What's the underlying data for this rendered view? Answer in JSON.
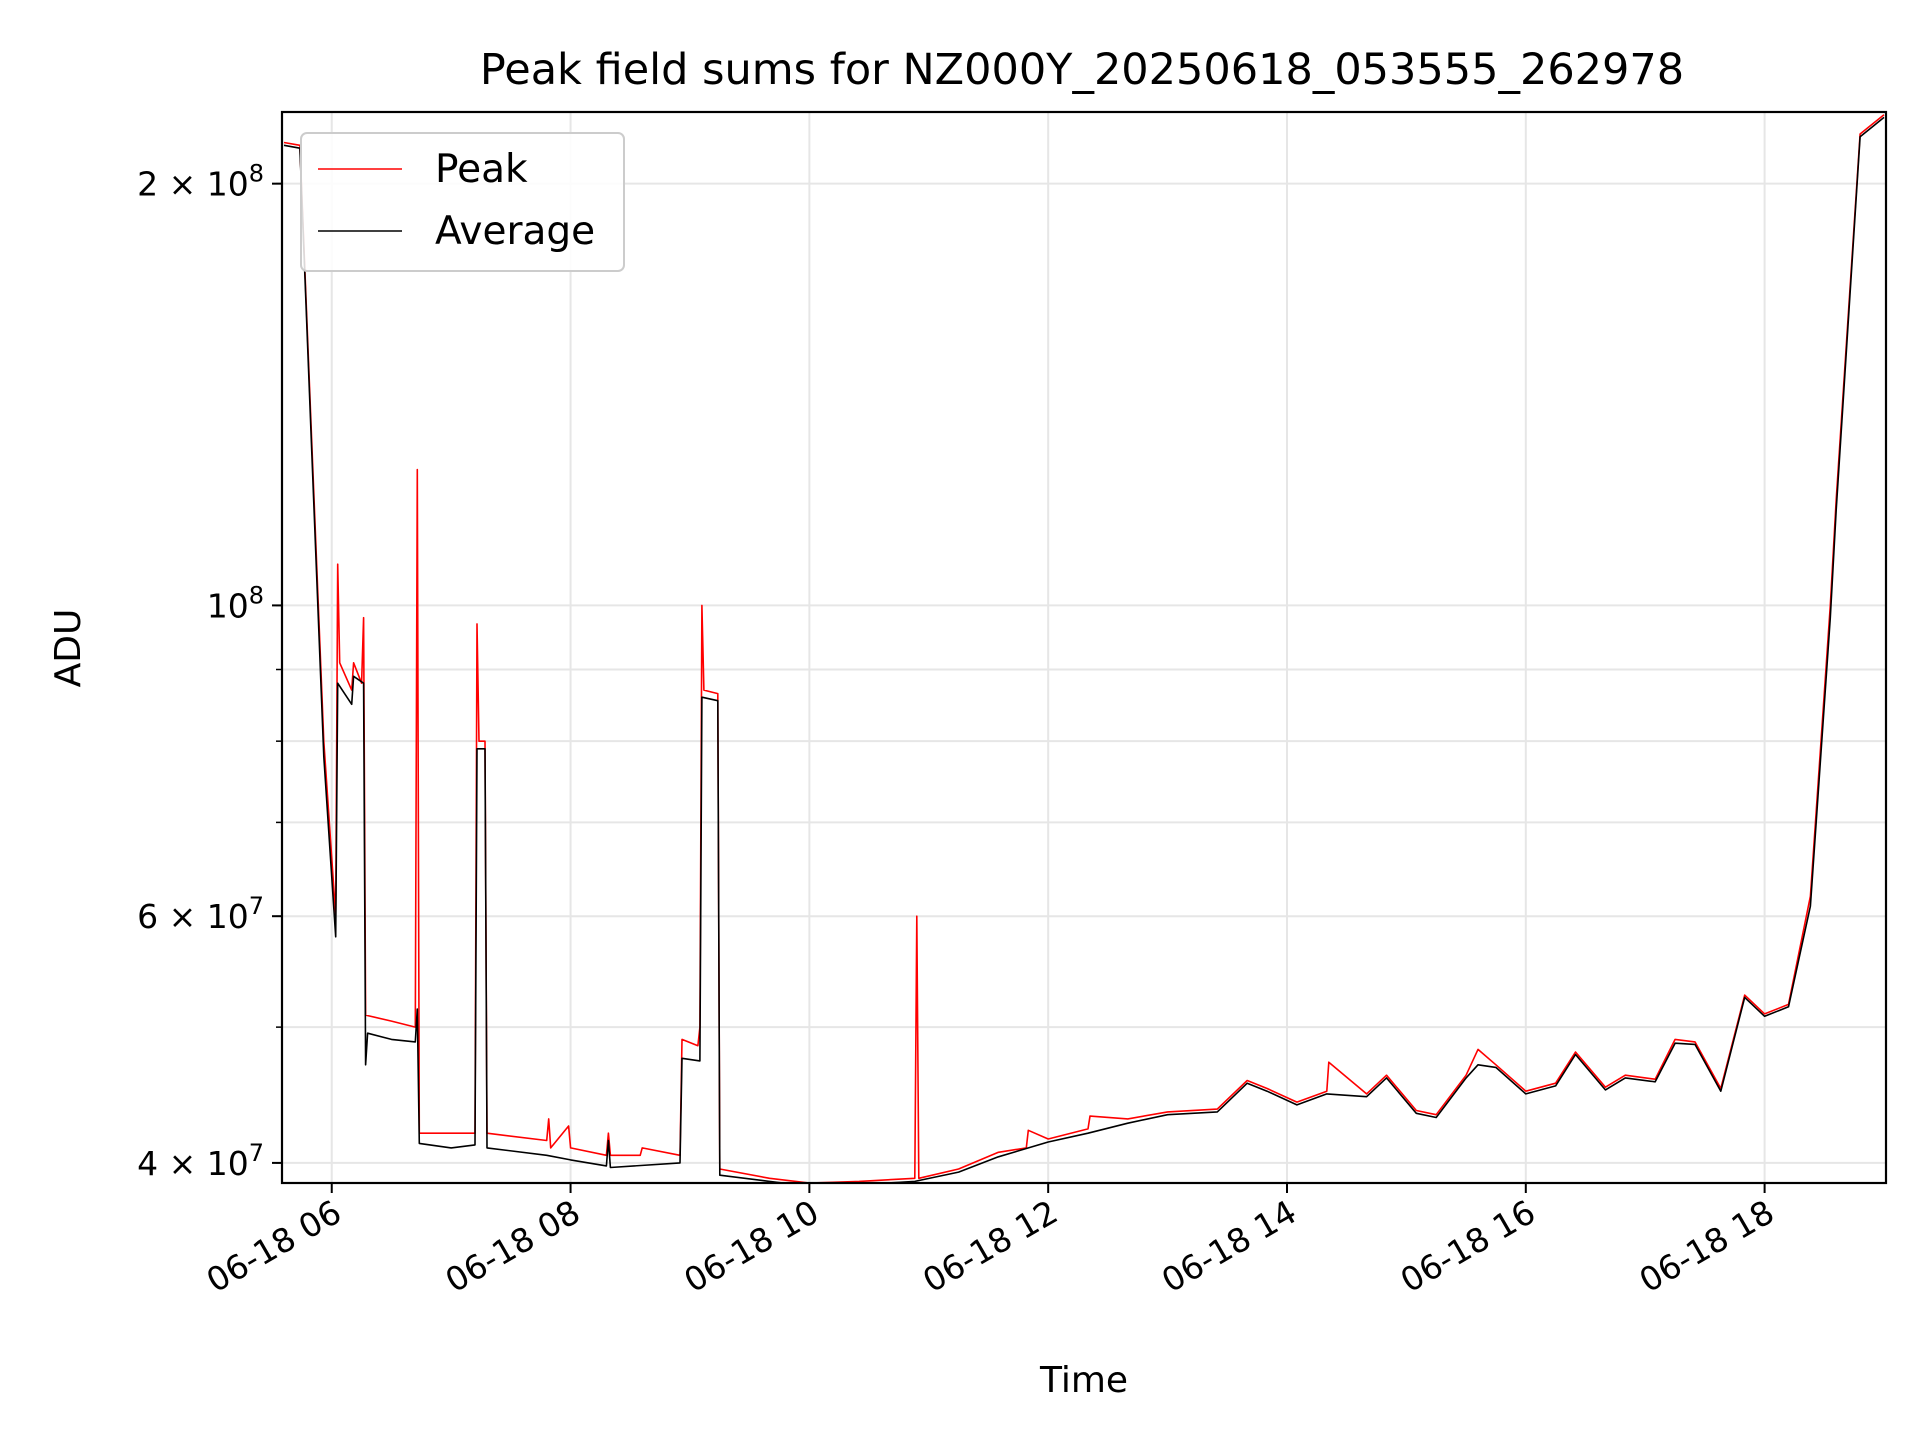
{
  "chart_data": {
    "type": "line",
    "title": "Peak field sums for NZ000Y_20250618_053555_262978",
    "xlabel": "Time",
    "ylabel": "ADU",
    "y_scale": "log",
    "grid": true,
    "legend_position": "upper-left",
    "xlim": [
      "2025-06-18 05:35",
      "2025-06-18 19:01"
    ],
    "ylim": [
      38700000,
      225000000
    ],
    "x_ticks": [
      "06-18 06",
      "06-18 08",
      "06-18 10",
      "06-18 12",
      "06-18 14",
      "06-18 16",
      "06-18 18"
    ],
    "y_ticks": [
      {
        "value": 40000000,
        "base": "4",
        "exp": "7"
      },
      {
        "value": 60000000,
        "base": "6",
        "exp": "7"
      },
      {
        "value": 100000000,
        "base": "",
        "exp": "8"
      },
      {
        "value": 200000000,
        "base": "2",
        "exp": "8"
      }
    ],
    "series": [
      {
        "name": "Peak",
        "color": "#ff0000",
        "points": [
          [
            "2025-06-18 05:36",
            214000000
          ],
          [
            "2025-06-18 05:44",
            213000000
          ],
          [
            "2025-06-18 05:50",
            130000000
          ],
          [
            "2025-06-18 05:56",
            80000000
          ],
          [
            "2025-06-18 06:02",
            60000000
          ],
          [
            "2025-06-18 06:03",
            107000000
          ],
          [
            "2025-06-18 06:04",
            91000000
          ],
          [
            "2025-06-18 06:10",
            87000000
          ],
          [
            "2025-06-18 06:11",
            91000000
          ],
          [
            "2025-06-18 06:15",
            88000000
          ],
          [
            "2025-06-18 06:16",
            98000000
          ],
          [
            "2025-06-18 06:17",
            51000000
          ],
          [
            "2025-06-18 06:30",
            50500000
          ],
          [
            "2025-06-18 06:42",
            50000000
          ],
          [
            "2025-06-18 06:43",
            125000000
          ],
          [
            "2025-06-18 06:44",
            42000000
          ],
          [
            "2025-06-18 07:12",
            42000000
          ],
          [
            "2025-06-18 07:13",
            97000000
          ],
          [
            "2025-06-18 07:14",
            80000000
          ],
          [
            "2025-06-18 07:17",
            80000000
          ],
          [
            "2025-06-18 07:18",
            42000000
          ],
          [
            "2025-06-18 07:48",
            41500000
          ],
          [
            "2025-06-18 07:49",
            43000000
          ],
          [
            "2025-06-18 07:50",
            41000000
          ],
          [
            "2025-06-18 07:59",
            42500000
          ],
          [
            "2025-06-18 08:00",
            41000000
          ],
          [
            "2025-06-18 08:18",
            40500000
          ],
          [
            "2025-06-18 08:19",
            42000000
          ],
          [
            "2025-06-18 08:20",
            40500000
          ],
          [
            "2025-06-18 08:35",
            40500000
          ],
          [
            "2025-06-18 08:36",
            41000000
          ],
          [
            "2025-06-18 08:55",
            40500000
          ],
          [
            "2025-06-18 08:56",
            49000000
          ],
          [
            "2025-06-18 09:04",
            48500000
          ],
          [
            "2025-06-18 09:05",
            50000000
          ],
          [
            "2025-06-18 09:06",
            100000000
          ],
          [
            "2025-06-18 09:07",
            87000000
          ],
          [
            "2025-06-18 09:14",
            86500000
          ],
          [
            "2025-06-18 09:15",
            39600000
          ],
          [
            "2025-06-18 09:40",
            39000000
          ],
          [
            "2025-06-18 10:00",
            38700000
          ],
          [
            "2025-06-18 10:25",
            38800000
          ],
          [
            "2025-06-18 10:53",
            39000000
          ],
          [
            "2025-06-18 10:54",
            60000000
          ],
          [
            "2025-06-18 10:55",
            39000000
          ],
          [
            "2025-06-18 11:15",
            39600000
          ],
          [
            "2025-06-18 11:35",
            40700000
          ],
          [
            "2025-06-18 11:49",
            41000000
          ],
          [
            "2025-06-18 11:50",
            42200000
          ],
          [
            "2025-06-18 12:00",
            41600000
          ],
          [
            "2025-06-18 12:20",
            42300000
          ],
          [
            "2025-06-18 12:21",
            43200000
          ],
          [
            "2025-06-18 12:40",
            43000000
          ],
          [
            "2025-06-18 13:00",
            43500000
          ],
          [
            "2025-06-18 13:25",
            43700000
          ],
          [
            "2025-06-18 13:40",
            45800000
          ],
          [
            "2025-06-18 13:50",
            45200000
          ],
          [
            "2025-06-18 14:05",
            44200000
          ],
          [
            "2025-06-18 14:20",
            45000000
          ],
          [
            "2025-06-18 14:21",
            47200000
          ],
          [
            "2025-06-18 14:40",
            44800000
          ],
          [
            "2025-06-18 14:50",
            46200000
          ],
          [
            "2025-06-18 15:05",
            43600000
          ],
          [
            "2025-06-18 15:15",
            43300000
          ],
          [
            "2025-06-18 15:30",
            46200000
          ],
          [
            "2025-06-18 15:36",
            48200000
          ],
          [
            "2025-06-18 15:45",
            47000000
          ],
          [
            "2025-06-18 16:00",
            45000000
          ],
          [
            "2025-06-18 16:15",
            45600000
          ],
          [
            "2025-06-18 16:25",
            48000000
          ],
          [
            "2025-06-18 16:40",
            45300000
          ],
          [
            "2025-06-18 16:50",
            46200000
          ],
          [
            "2025-06-18 17:05",
            45900000
          ],
          [
            "2025-06-18 17:15",
            49000000
          ],
          [
            "2025-06-18 17:25",
            48800000
          ],
          [
            "2025-06-18 17:38",
            45200000
          ],
          [
            "2025-06-18 17:50",
            52700000
          ],
          [
            "2025-06-18 18:00",
            51100000
          ],
          [
            "2025-06-18 18:12",
            51900000
          ],
          [
            "2025-06-18 18:23",
            62000000
          ],
          [
            "2025-06-18 18:33",
            100000000
          ],
          [
            "2025-06-18 18:36",
            119000000
          ],
          [
            "2025-06-18 18:48",
            217000000
          ],
          [
            "2025-06-18 19:00",
            224000000
          ]
        ]
      },
      {
        "name": "Average",
        "color": "#000000",
        "points": [
          [
            "2025-06-18 05:36",
            213000000
          ],
          [
            "2025-06-18 05:44",
            212000000
          ],
          [
            "2025-06-18 05:50",
            128000000
          ],
          [
            "2025-06-18 05:56",
            78000000
          ],
          [
            "2025-06-18 06:02",
            58000000
          ],
          [
            "2025-06-18 06:03",
            88000000
          ],
          [
            "2025-06-18 06:10",
            85000000
          ],
          [
            "2025-06-18 06:11",
            89000000
          ],
          [
            "2025-06-18 06:16",
            88000000
          ],
          [
            "2025-06-18 06:17",
            47000000
          ],
          [
            "2025-06-18 06:18",
            49500000
          ],
          [
            "2025-06-18 06:30",
            49000000
          ],
          [
            "2025-06-18 06:42",
            48800000
          ],
          [
            "2025-06-18 06:43",
            51500000
          ],
          [
            "2025-06-18 06:44",
            41300000
          ],
          [
            "2025-06-18 07:00",
            41000000
          ],
          [
            "2025-06-18 07:12",
            41200000
          ],
          [
            "2025-06-18 07:13",
            79000000
          ],
          [
            "2025-06-18 07:17",
            79000000
          ],
          [
            "2025-06-18 07:18",
            41000000
          ],
          [
            "2025-06-18 07:48",
            40500000
          ],
          [
            "2025-06-18 08:00",
            40200000
          ],
          [
            "2025-06-18 08:18",
            39800000
          ],
          [
            "2025-06-18 08:19",
            41500000
          ],
          [
            "2025-06-18 08:20",
            39700000
          ],
          [
            "2025-06-18 08:55",
            40000000
          ],
          [
            "2025-06-18 08:56",
            47500000
          ],
          [
            "2025-06-18 09:05",
            47300000
          ],
          [
            "2025-06-18 09:06",
            86000000
          ],
          [
            "2025-06-18 09:14",
            85500000
          ],
          [
            "2025-06-18 09:15",
            39200000
          ],
          [
            "2025-06-18 09:40",
            38800000
          ],
          [
            "2025-06-18 10:00",
            38500000
          ],
          [
            "2025-06-18 10:25",
            38600000
          ],
          [
            "2025-06-18 10:53",
            38800000
          ],
          [
            "2025-06-18 11:15",
            39400000
          ],
          [
            "2025-06-18 11:35",
            40400000
          ],
          [
            "2025-06-18 12:00",
            41400000
          ],
          [
            "2025-06-18 12:20",
            42000000
          ],
          [
            "2025-06-18 12:40",
            42700000
          ],
          [
            "2025-06-18 13:00",
            43300000
          ],
          [
            "2025-06-18 13:25",
            43500000
          ],
          [
            "2025-06-18 13:40",
            45600000
          ],
          [
            "2025-06-18 13:50",
            45000000
          ],
          [
            "2025-06-18 14:05",
            44000000
          ],
          [
            "2025-06-18 14:20",
            44800000
          ],
          [
            "2025-06-18 14:40",
            44600000
          ],
          [
            "2025-06-18 14:50",
            46000000
          ],
          [
            "2025-06-18 15:05",
            43400000
          ],
          [
            "2025-06-18 15:15",
            43100000
          ],
          [
            "2025-06-18 15:30",
            46000000
          ],
          [
            "2025-06-18 15:36",
            47000000
          ],
          [
            "2025-06-18 15:45",
            46800000
          ],
          [
            "2025-06-18 16:00",
            44800000
          ],
          [
            "2025-06-18 16:15",
            45400000
          ],
          [
            "2025-06-18 16:25",
            47800000
          ],
          [
            "2025-06-18 16:40",
            45100000
          ],
          [
            "2025-06-18 16:50",
            46000000
          ],
          [
            "2025-06-18 17:05",
            45700000
          ],
          [
            "2025-06-18 17:15",
            48700000
          ],
          [
            "2025-06-18 17:25",
            48600000
          ],
          [
            "2025-06-18 17:38",
            45000000
          ],
          [
            "2025-06-18 17:50",
            52500000
          ],
          [
            "2025-06-18 18:00",
            50900000
          ],
          [
            "2025-06-18 18:12",
            51700000
          ],
          [
            "2025-06-18 18:23",
            61000000
          ],
          [
            "2025-06-18 18:33",
            98000000
          ],
          [
            "2025-06-18 18:36",
            117000000
          ],
          [
            "2025-06-18 18:48",
            216000000
          ],
          [
            "2025-06-18 19:00",
            223000000
          ]
        ]
      }
    ]
  }
}
